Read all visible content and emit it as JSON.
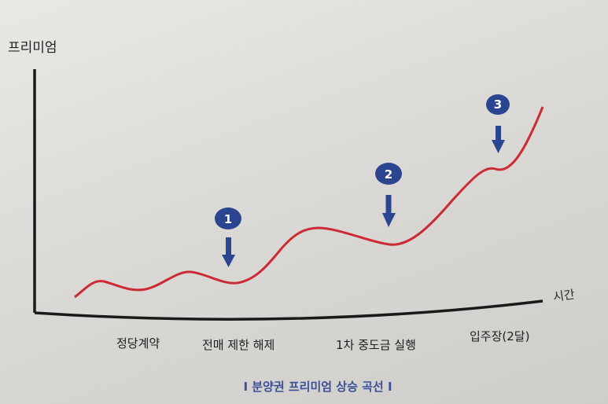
{
  "chart_data": {
    "type": "line",
    "ylabel": "프리미엄",
    "xlabel": "시간",
    "caption": "I 분양권 프리미엄 상승 곡선 I",
    "categories": [
      "정당계약",
      "전매 제한 해제",
      "1차 중도금 실행",
      "입주장(2달)"
    ],
    "markers": [
      {
        "label": "1",
        "category_index": 1
      },
      {
        "label": "2",
        "category_index": 2
      },
      {
        "label": "3",
        "category_index": 3
      }
    ],
    "line_color": "#cc2b35",
    "marker_color": "#2c4590",
    "grid": false,
    "axis_ticks": false
  }
}
